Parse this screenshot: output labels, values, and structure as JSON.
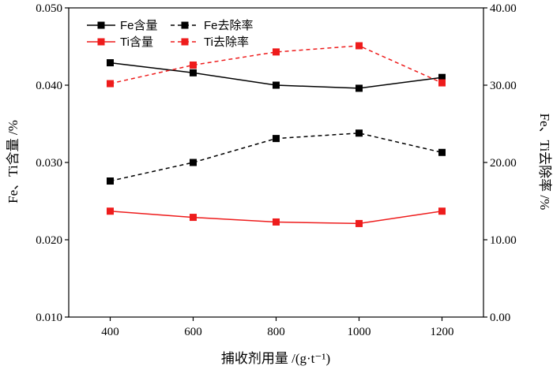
{
  "chart_data": {
    "type": "line",
    "x": [
      400,
      600,
      800,
      1000,
      1200
    ],
    "xlabel": "捕收剂用量 /(g·t⁻¹)",
    "ylabel_left": "Fe、Ti含量 /%",
    "ylabel_right": "Fe、Ti去除率 /%",
    "xlim": [
      300,
      1300
    ],
    "ylim_left": [
      0.01,
      0.05
    ],
    "ylim_right": [
      0.0,
      40.0
    ],
    "x_ticks": [
      "400",
      "600",
      "800",
      "1000",
      "1200"
    ],
    "y_left_ticks": [
      "0.010",
      "0.020",
      "0.030",
      "0.040",
      "0.050"
    ],
    "y_right_ticks": [
      "0.00",
      "10.00",
      "20.00",
      "30.00",
      "40.00"
    ],
    "legend_position": "top-left",
    "grid": false,
    "series": [
      {
        "name": "Fe含量",
        "axis": "left",
        "color": "#000000",
        "dashed": false,
        "values": [
          0.0429,
          0.0416,
          0.04,
          0.0396,
          0.041
        ]
      },
      {
        "name": "Fe去除率",
        "axis": "right",
        "color": "#000000",
        "dashed": true,
        "values": [
          17.6,
          20.0,
          23.1,
          23.8,
          21.3
        ]
      },
      {
        "name": "Ti含量",
        "axis": "left",
        "color": "#ee1c1c",
        "dashed": false,
        "values": [
          0.0237,
          0.0229,
          0.0223,
          0.0221,
          0.0237
        ]
      },
      {
        "name": "Ti去除率",
        "axis": "right",
        "color": "#ee1c1c",
        "dashed": true,
        "values": [
          30.2,
          32.6,
          34.3,
          35.1,
          30.3
        ]
      }
    ]
  }
}
